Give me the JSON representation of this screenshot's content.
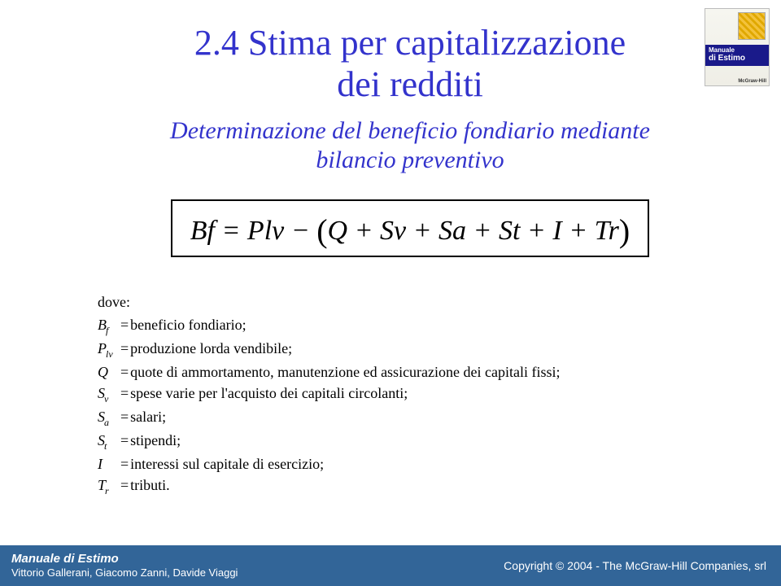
{
  "title_line1": "2.4 Stima per capitalizzazione",
  "title_line2": "dei redditi",
  "subtitle_line1": "Determinazione del beneficio fondiario mediante",
  "subtitle_line2": "bilancio preventivo",
  "formula": {
    "lhs": "Bf",
    "rhs_lead": "Plv",
    "terms": [
      "Q",
      "Sv",
      "Sa",
      "St",
      "I",
      "Tr"
    ]
  },
  "dove_label": "dove:",
  "defs": [
    {
      "sym": "B",
      "sub": "f",
      "text": "beneficio fondiario;"
    },
    {
      "sym": "P",
      "sub": "lv",
      "text": "produzione lorda vendibile;"
    },
    {
      "sym": "Q",
      "sub": "",
      "text": "quote di ammortamento, manutenzione ed assicurazione dei capitali fissi;"
    },
    {
      "sym": "S",
      "sub": "v",
      "text": "spese varie per l'acquisto dei capitali circolanti;"
    },
    {
      "sym": "S",
      "sub": "a",
      "text": "salari;"
    },
    {
      "sym": "S",
      "sub": "t",
      "text": "stipendi;"
    },
    {
      "sym": "I",
      "sub": "",
      "text": "interessi sul capitale di esercizio;"
    },
    {
      "sym": "T",
      "sub": "r",
      "text": "tributi."
    }
  ],
  "logo": {
    "line1": "Manuale",
    "line2": "di Estimo",
    "brand": "McGraw-Hill"
  },
  "footer": {
    "left_line1": "Manuale di Estimo",
    "left_line2": "Vittorio Gallerani, Giacomo Zanni, Davide Viaggi",
    "right": "Copyright © 2004 - The McGraw-Hill Companies, srl"
  },
  "colors": {
    "heading": "#3333cc",
    "footer_bg": "#326598",
    "logo_band": "#1a1a8a"
  }
}
